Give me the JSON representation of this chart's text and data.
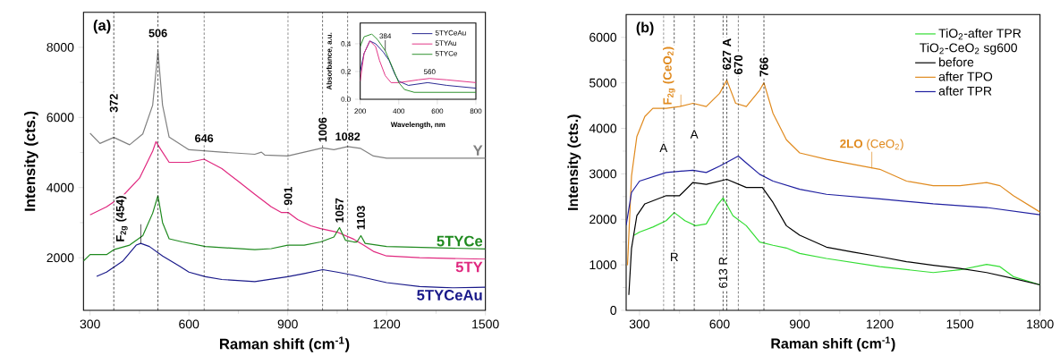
{
  "chart_data": [
    {
      "type": "line",
      "xlabel": "Raman shift (cm$^{-1}$)",
      "ylabel": "Intensity (cts.)",
      "xlim": [
        280,
        1500
      ],
      "ylim": [
        500,
        9000
      ],
      "xticks": [
        300,
        600,
        900,
        1200,
        1500
      ],
      "yticks": [
        2000,
        4000,
        6000,
        8000
      ],
      "legend": false,
      "annotations": [
        "(a)",
        {
          "text": "506",
          "x": 506,
          "y": 8250
        },
        {
          "text": "372",
          "x": 372,
          "y": 6100
        },
        {
          "text": "646",
          "x": 646,
          "y": 5250
        },
        {
          "text": "1006",
          "x": 1006,
          "y": 5250
        },
        {
          "text": "1082",
          "x": 1082,
          "y": 5300
        },
        {
          "text": "901",
          "x": 901,
          "y": 3450
        },
        {
          "text": "1057",
          "x": 1057,
          "y": 2950
        },
        {
          "text": "1103",
          "x": 1122,
          "y": 2750
        },
        {
          "text": "F$_{2g}$ (454)",
          "x": 454,
          "y": 2410
        }
      ],
      "ref_lines": [
        {
          "axis": "x",
          "value": 372,
          "line_style": "dashed",
          "color": "#000000"
        },
        {
          "axis": "x",
          "value": 506,
          "line_style": "dashed",
          "color": "#000000"
        },
        {
          "axis": "x",
          "value": 646,
          "line_style": "dashed",
          "color": "#000000"
        },
        {
          "axis": "x",
          "value": 901,
          "line_style": "dashed",
          "color": "#000000"
        },
        {
          "axis": "x",
          "value": 1006,
          "line_style": "dashed",
          "color": "#000000"
        },
        {
          "axis": "x",
          "value": 1082,
          "line_style": "dashed",
          "color": "#000000"
        }
      ],
      "series": [
        {
          "name": "Y",
          "color": "#808080",
          "x": [
            300,
            330,
            372,
            420,
            460,
            490,
            506,
            520,
            540,
            600,
            700,
            800,
            820,
            830,
            900,
            950,
            1006,
            1040,
            1082,
            1120,
            1160,
            1200,
            1300,
            1400,
            1500
          ],
          "values": [
            5550,
            5260,
            5430,
            5220,
            5530,
            6350,
            7890,
            6350,
            5440,
            5080,
            5010,
            4950,
            5010,
            4930,
            4900,
            5010,
            5130,
            5080,
            5170,
            5120,
            4900,
            4840,
            4840,
            4840,
            4840
          ]
        },
        {
          "name": "5TY",
          "color": "#e0287f",
          "x": [
            300,
            350,
            400,
            450,
            490,
            500,
            515,
            540,
            600,
            646,
            700,
            750,
            800,
            850,
            880,
            901,
            930,
            970,
            1000,
            1050,
            1100,
            1130,
            1160,
            1200,
            1300,
            1500
          ],
          "values": [
            3220,
            3450,
            3770,
            4270,
            5040,
            5310,
            5080,
            4720,
            4720,
            4810,
            4540,
            4180,
            3810,
            3450,
            3290,
            3290,
            3090,
            2910,
            2830,
            2730,
            2530,
            2360,
            2180,
            2050,
            2000,
            1960
          ]
        },
        {
          "name": "5TYCe",
          "color": "#1f8a1f",
          "x": [
            280,
            300,
            350,
            372,
            420,
            460,
            490,
            506,
            520,
            540,
            580,
            650,
            800,
            850,
            900,
            950,
            1000,
            1040,
            1057,
            1075,
            1100,
            1110,
            1122,
            1135,
            1200,
            1500
          ],
          "values": [
            1910,
            2090,
            2090,
            2230,
            2360,
            2630,
            3270,
            3770,
            3000,
            2540,
            2450,
            2320,
            2230,
            2260,
            2360,
            2360,
            2450,
            2590,
            2860,
            2500,
            2450,
            2450,
            2630,
            2410,
            2320,
            2250
          ]
        },
        {
          "name": "5TYCeAu",
          "color": "#1a1a8a",
          "x": [
            320,
            350,
            400,
            440,
            454,
            480,
            520,
            570,
            600,
            650,
            700,
            800,
            900,
            950,
            1006,
            1050,
            1100,
            1200,
            1300,
            1400,
            1500
          ],
          "values": [
            1470,
            1590,
            1910,
            2360,
            2410,
            2320,
            2050,
            1770,
            1590,
            1460,
            1380,
            1320,
            1460,
            1550,
            1660,
            1590,
            1500,
            1290,
            1180,
            1140,
            1160
          ]
        }
      ]
    },
    {
      "type": "line",
      "xlabel": "Wavelength, nm",
      "ylabel": "Absorbance, a.u.",
      "xlim": [
        200,
        800
      ],
      "ylim": [
        0,
        0.55
      ],
      "xticks": [
        200,
        400,
        600,
        800
      ],
      "yticks": [
        {
          "value": 0,
          "label": "0.0"
        },
        {
          "value": 0.2,
          "label": "0.2"
        },
        {
          "value": 0.4,
          "label": "0.4"
        }
      ],
      "legend": "top right",
      "annotations": [
        {
          "text": "384",
          "x": 330,
          "y": 0.35
        },
        {
          "text": "560",
          "x": 560,
          "y": 0.17
        }
      ],
      "series": [
        {
          "name": "5TYCeAu",
          "color": "#1a1a8a",
          "x": [
            200,
            220,
            250,
            280,
            320,
            350,
            380,
            400,
            450,
            550,
            650,
            800
          ],
          "values": [
            0.2,
            0.33,
            0.42,
            0.4,
            0.34,
            0.28,
            0.18,
            0.13,
            0.1,
            0.12,
            0.1,
            0.08
          ]
        },
        {
          "name": "5TYAu",
          "color": "#e0287f",
          "x": [
            200,
            220,
            250,
            280,
            300,
            330,
            360,
            400,
            500,
            560,
            650,
            800
          ],
          "values": [
            0.13,
            0.33,
            0.42,
            0.38,
            0.28,
            0.17,
            0.12,
            0.12,
            0.14,
            0.15,
            0.14,
            0.12
          ]
        },
        {
          "name": "5TYCe",
          "color": "#1f8a1f",
          "x": [
            200,
            220,
            260,
            290,
            330,
            370,
            400,
            430,
            480,
            600,
            800
          ],
          "values": [
            0.38,
            0.45,
            0.47,
            0.43,
            0.35,
            0.22,
            0.12,
            0.07,
            0.05,
            0.05,
            0.05
          ]
        }
      ]
    },
    {
      "type": "line",
      "xlabel": "Raman shift (cm$^{-1}$)",
      "ylabel": "Intensity (cts.)",
      "xlim": [
        250,
        1800
      ],
      "ylim": [
        0,
        6500
      ],
      "xticks": [
        300,
        600,
        900,
        1200,
        1500,
        1800
      ],
      "yticks": [
        0,
        1000,
        2000,
        3000,
        4000,
        5000,
        6000
      ],
      "legend": "top right",
      "legend_title": "TiO$_{2}$-CeO$_{2}$ sg600",
      "annotations": [
        "(b)",
        {
          "text": "F$_{2g}$ (CeO$_{2}$)",
          "x": 455,
          "y": 4480
        },
        {
          "text": "627 A",
          "x": 627,
          "y": 5250
        },
        {
          "text": "670",
          "x": 670,
          "y": 5150
        },
        {
          "text": "766",
          "x": 766,
          "y": 5100
        },
        {
          "text": "**2LO** (CeO$_{2}$)",
          "x": 1170,
          "y": 3120
        },
        {
          "text": "A",
          "x": 390,
          "y": 3450
        },
        {
          "text": "A",
          "x": 505,
          "y": 3750
        },
        {
          "text": "R",
          "x": 430,
          "y": 1050
        },
        {
          "text": "613 R",
          "x": 613,
          "y": 450
        }
      ],
      "ref_lines": [
        {
          "axis": "x",
          "value": 390,
          "line_style": "dashed",
          "color": "#000000"
        },
        {
          "axis": "x",
          "value": 430,
          "line_style": "dashed",
          "color": "#000000"
        },
        {
          "axis": "x",
          "value": 505,
          "line_style": "dashed",
          "color": "#000000"
        },
        {
          "axis": "x",
          "value": 613,
          "line_style": "dashed",
          "color": "#000000"
        },
        {
          "axis": "x",
          "value": 627,
          "line_style": "dashed",
          "color": "#000000"
        },
        {
          "axis": "x",
          "value": 670,
          "line_style": "dashed",
          "color": "#000000"
        },
        {
          "axis": "x",
          "value": 766,
          "line_style": "dashed",
          "color": "#000000"
        }
      ],
      "series": [
        {
          "name": "TiO$_{2}$-after TPR",
          "color": "#33dd33",
          "x": [
            280,
            300,
            350,
            400,
            430,
            470,
            510,
            550,
            590,
            613,
            650,
            700,
            750,
            800,
            850,
            900,
            1000,
            1200,
            1400,
            1500,
            1600,
            1650,
            1700,
            1800
          ],
          "values": [
            1650,
            1720,
            1830,
            1970,
            2150,
            1970,
            1860,
            1900,
            2300,
            2470,
            2080,
            1860,
            1500,
            1430,
            1370,
            1250,
            1140,
            960,
            830,
            890,
            1010,
            960,
            740,
            560
          ]
        },
        {
          "name": "before",
          "color": "#000000",
          "x": [
            260,
            270,
            290,
            320,
            400,
            450,
            500,
            550,
            627,
            700,
            760,
            800,
            850,
            900,
            1000,
            1100,
            1200,
            1300,
            1400,
            1500,
            1600,
            1700,
            1800
          ],
          "values": [
            340,
            1360,
            2080,
            2340,
            2520,
            2520,
            2810,
            2770,
            2880,
            2700,
            2700,
            2370,
            1860,
            1650,
            1390,
            1280,
            1180,
            1070,
            990,
            920,
            830,
            700,
            560
          ]
        },
        {
          "name": "after TPO",
          "color": "#e08a1e",
          "x": [
            255,
            270,
            290,
            320,
            350,
            400,
            450,
            500,
            550,
            600,
            627,
            660,
            700,
            750,
            766,
            800,
            850,
            900,
            1000,
            1100,
            1200,
            1300,
            1400,
            1500,
            1600,
            1650,
            1700,
            1800
          ],
          "values": [
            990,
            2950,
            3820,
            4260,
            4440,
            4440,
            4480,
            4550,
            4480,
            4770,
            5060,
            4550,
            4480,
            4840,
            5000,
            4330,
            3750,
            3460,
            3320,
            3210,
            3100,
            2840,
            2740,
            2740,
            2810,
            2740,
            2520,
            2160
          ]
        },
        {
          "name": "after TPR",
          "color": "#1f1fa0",
          "x": [
            250,
            270,
            300,
            400,
            500,
            550,
            600,
            670,
            700,
            750,
            800,
            900,
            1000,
            1200,
            1400,
            1600,
            1800
          ],
          "values": [
            1870,
            2590,
            2840,
            3030,
            3080,
            3030,
            3170,
            3390,
            3240,
            2990,
            2840,
            2660,
            2550,
            2450,
            2340,
            2260,
            2100
          ]
        }
      ]
    }
  ]
}
